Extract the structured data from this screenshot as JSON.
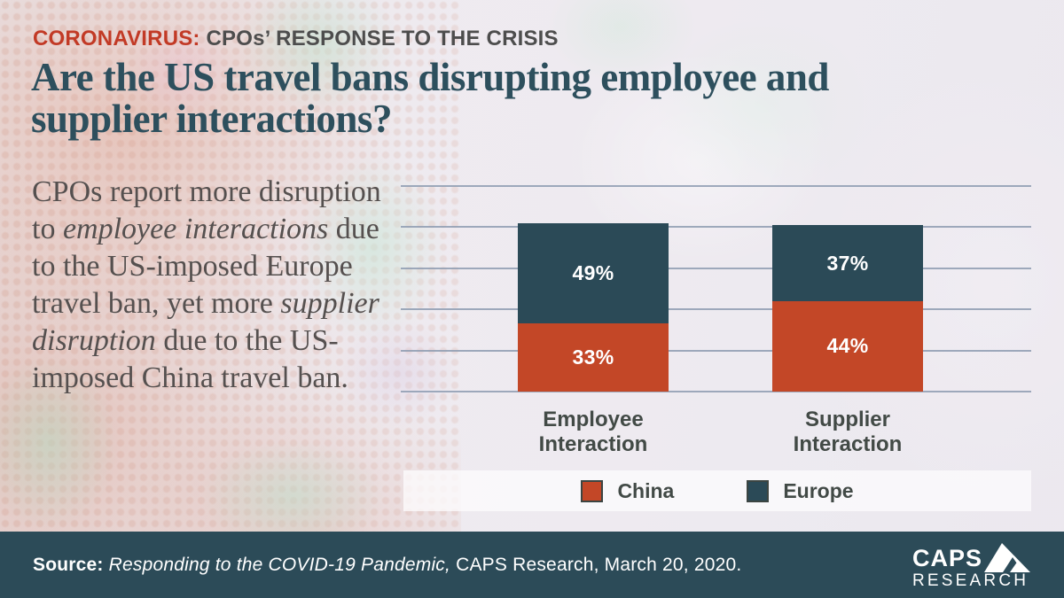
{
  "header": {
    "kicker_highlight": "CORONAVIRUS:",
    "kicker_rest": "CPOs’ RESPONSE TO THE CRISIS",
    "title_line1": "Are the US travel bans disrupting employee and",
    "title_line2": "supplier interactions?"
  },
  "summary": {
    "segments": [
      {
        "text": "CPOs report more disruption to ",
        "italic": false
      },
      {
        "text": "employee interactions",
        "italic": true
      },
      {
        "text": " due to the US-imposed Europe travel ban, yet more ",
        "italic": false
      },
      {
        "text": "supplier disruption",
        "italic": true
      },
      {
        "text": " due to the US-imposed China travel ban.",
        "italic": false
      }
    ]
  },
  "chart_data": {
    "type": "bar",
    "stacked": true,
    "categories": [
      "Employee Interaction",
      "Supplier Interaction"
    ],
    "series": [
      {
        "name": "China",
        "color": "#c34727",
        "values": [
          33,
          44
        ]
      },
      {
        "name": "Europe",
        "color": "#2b4a57",
        "values": [
          49,
          37
        ]
      }
    ],
    "unit": "%",
    "ylim": [
      0,
      100
    ],
    "gridline_count": 6,
    "grid_color": "#8e9cb2",
    "grid_on": true,
    "legend_position": "bottom",
    "value_label_color": "#ffffff"
  },
  "legend": {
    "items": [
      {
        "label": "China",
        "color": "#c34727"
      },
      {
        "label": "Europe",
        "color": "#2b4a57"
      }
    ]
  },
  "footer": {
    "source_label": "Source:",
    "source_title_italic": "Responding to the COVID-19 Pandemic,",
    "source_rest": "CAPS Research, March 20, 2020.",
    "logo_top": "CAPS",
    "logo_bottom": "RESEARCH"
  },
  "colors": {
    "accent_red": "#c23a26",
    "kicker_gray": "#4d4d4d",
    "title_teal": "#2d4f5d",
    "body_text": "#55504f",
    "footer_bg": "#2c4b58",
    "category_label": "#424a46"
  }
}
